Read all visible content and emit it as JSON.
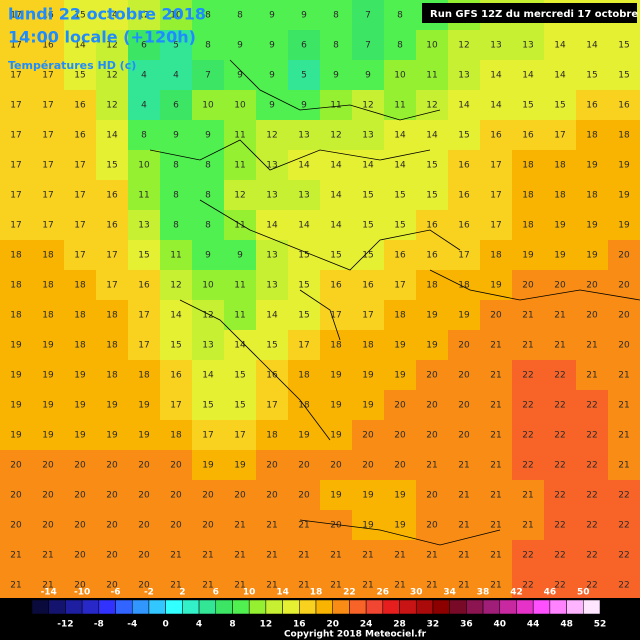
{
  "header": {
    "date": "lundi 22 octobre 2018",
    "time": "14:00 locale (+120h)",
    "field": "Températures HD (c)",
    "run": "Run GFS 12Z du mercredi 17 octobre 2018"
  },
  "grid": {
    "rows": [
      [
        17,
        16,
        15,
        14,
        12,
        10,
        8,
        8,
        9,
        9,
        8,
        7,
        8,
        9,
        11,
        13,
        13,
        14,
        15,
        15
      ],
      [
        17,
        16,
        14,
        12,
        6,
        5,
        8,
        9,
        9,
        6,
        8,
        7,
        8,
        10,
        12,
        13,
        13,
        14,
        14,
        15
      ],
      [
        17,
        17,
        15,
        12,
        4,
        4,
        7,
        9,
        9,
        5,
        9,
        9,
        10,
        11,
        13,
        14,
        14,
        14,
        15,
        15
      ],
      [
        17,
        17,
        16,
        12,
        4,
        6,
        10,
        10,
        9,
        9,
        11,
        12,
        11,
        12,
        14,
        14,
        15,
        15,
        16,
        16
      ],
      [
        17,
        17,
        16,
        14,
        8,
        9,
        9,
        11,
        12,
        13,
        12,
        13,
        14,
        14,
        15,
        16,
        16,
        17,
        18,
        18
      ],
      [
        17,
        17,
        17,
        15,
        10,
        8,
        8,
        11,
        13,
        14,
        14,
        14,
        14,
        15,
        16,
        17,
        18,
        18,
        19,
        19
      ],
      [
        17,
        17,
        17,
        16,
        11,
        8,
        8,
        12,
        13,
        13,
        14,
        15,
        15,
        15,
        16,
        17,
        18,
        18,
        18,
        19
      ],
      [
        17,
        17,
        17,
        16,
        13,
        8,
        8,
        11,
        14,
        14,
        14,
        15,
        15,
        16,
        16,
        17,
        18,
        19,
        19,
        19
      ],
      [
        18,
        18,
        17,
        17,
        15,
        11,
        9,
        9,
        13,
        15,
        15,
        15,
        16,
        16,
        17,
        18,
        19,
        19,
        19,
        20
      ],
      [
        18,
        18,
        18,
        17,
        16,
        12,
        10,
        11,
        13,
        15,
        16,
        16,
        17,
        18,
        18,
        19,
        20,
        20,
        20,
        20
      ],
      [
        18,
        18,
        18,
        18,
        17,
        14,
        12,
        11,
        14,
        15,
        17,
        17,
        18,
        19,
        19,
        20,
        21,
        21,
        20,
        20
      ],
      [
        19,
        19,
        18,
        18,
        17,
        15,
        13,
        14,
        15,
        17,
        18,
        18,
        19,
        19,
        20,
        21,
        21,
        21,
        21,
        20
      ],
      [
        19,
        19,
        19,
        18,
        18,
        16,
        14,
        15,
        16,
        18,
        19,
        19,
        19,
        20,
        20,
        21,
        22,
        22,
        21,
        21
      ],
      [
        19,
        19,
        19,
        19,
        19,
        17,
        15,
        15,
        17,
        18,
        19,
        19,
        20,
        20,
        20,
        21,
        22,
        22,
        22,
        21
      ],
      [
        19,
        19,
        19,
        19,
        19,
        18,
        17,
        17,
        18,
        19,
        19,
        20,
        20,
        20,
        20,
        21,
        22,
        22,
        22,
        21
      ],
      [
        20,
        20,
        20,
        20,
        20,
        20,
        19,
        19,
        20,
        20,
        20,
        20,
        20,
        21,
        21,
        21,
        22,
        22,
        22,
        21
      ],
      [
        20,
        20,
        20,
        20,
        20,
        20,
        20,
        20,
        20,
        20,
        19,
        19,
        19,
        20,
        21,
        21,
        21,
        22,
        22,
        22
      ],
      [
        20,
        20,
        20,
        20,
        20,
        20,
        20,
        21,
        21,
        21,
        20,
        19,
        19,
        20,
        21,
        21,
        21,
        22,
        22,
        22
      ],
      [
        21,
        21,
        20,
        20,
        20,
        21,
        21,
        21,
        21,
        21,
        21,
        21,
        21,
        21,
        21,
        21,
        22,
        22,
        22,
        22
      ],
      [
        21,
        21,
        20,
        20,
        20,
        21,
        21,
        21,
        21,
        21,
        21,
        21,
        21,
        21,
        21,
        21,
        22,
        22,
        22,
        22
      ]
    ]
  },
  "scale": {
    "range": [
      -16,
      52
    ],
    "colors": [
      "#0a0a3c",
      "#14146e",
      "#1e1ea0",
      "#2828c8",
      "#3232ff",
      "#3264ff",
      "#3296ff",
      "#32c8ff",
      "#32ffff",
      "#32f0c8",
      "#32e696",
      "#3ce664",
      "#50f050",
      "#96f032",
      "#c8f032",
      "#e6f032",
      "#f8d21e",
      "#f8b400",
      "#f88c14",
      "#f86428",
      "#f04632",
      "#e61e1e",
      "#c81414",
      "#aa0a0a",
      "#8c0000",
      "#780a28",
      "#8c1450",
      "#a01e78",
      "#c828a0",
      "#e632c8",
      "#ff50ff",
      "#ff82ff",
      "#ffb4ff",
      "#ffe6ff"
    ],
    "labels_top": [
      -14,
      -10,
      -6,
      -2,
      2,
      6,
      10,
      14,
      18,
      22,
      26,
      30,
      34,
      38,
      42,
      46,
      50
    ],
    "labels_bottom": [
      -12,
      -8,
      -4,
      0,
      4,
      8,
      12,
      16,
      20,
      24,
      28,
      32,
      36,
      40,
      44,
      48,
      52
    ]
  },
  "copyright": "Copyright 2018 Meteociel.fr"
}
